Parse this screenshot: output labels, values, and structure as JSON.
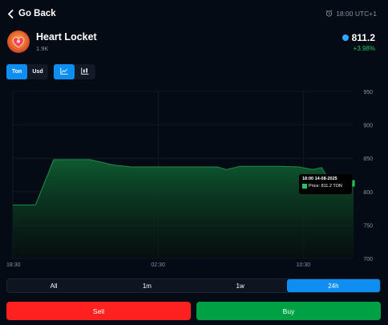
{
  "header": {
    "back_label": "Go Back",
    "time_label": "18:00 UTC+1",
    "back_icon": "chevron-left-icon",
    "time_icon": "alarm-clock-icon"
  },
  "item": {
    "title": "Heart Locket",
    "subtitle": "1.9K",
    "price": "811.2",
    "change": "+3.98%",
    "icon": "heart-locket-icon",
    "currency_icon": "ton-coin-icon"
  },
  "toggles": {
    "currency": [
      {
        "label": "Ton",
        "active": true
      },
      {
        "label": "Usd",
        "active": false
      }
    ],
    "view": [
      {
        "icon": "line-chart-icon",
        "active": true
      },
      {
        "icon": "candlestick-chart-icon",
        "active": false
      }
    ]
  },
  "chart_data": {
    "type": "area",
    "x_ticks": [
      "18:30",
      "02:30",
      "10:30"
    ],
    "y_ticks": [
      950,
      900,
      850,
      800,
      750,
      700
    ],
    "ylim": [
      700,
      950
    ],
    "x": [
      0,
      0.25,
      0.25,
      0.5,
      0.9,
      1.7,
      2.2,
      2.6,
      3.0,
      3.7,
      4.5,
      4.7,
      5.0,
      5.9,
      6.3,
      6.6,
      6.8,
      7.0,
      7.25,
      7.5
    ],
    "values": [
      780,
      780,
      780,
      780,
      848,
      848,
      840,
      837,
      837,
      837,
      837,
      833,
      838,
      838,
      837,
      833,
      836,
      812,
      812,
      811.2
    ],
    "grid": true,
    "colors": {
      "line": "#1f8a4c",
      "fill_top": "#0e5a30",
      "fill_bottom": "#08110d"
    },
    "tooltip": {
      "date": "18:00 14-08-2025",
      "label": "Price: 811.2 TON"
    }
  },
  "range_tabs": [
    {
      "label": "All",
      "active": false
    },
    {
      "label": "1m",
      "active": false
    },
    {
      "label": "1w",
      "active": false
    },
    {
      "label": "24h",
      "active": true
    }
  ],
  "actions": {
    "sell_label": "Sell",
    "buy_label": "Buy",
    "sell_color": "#ff2020",
    "buy_color": "#00a145"
  }
}
